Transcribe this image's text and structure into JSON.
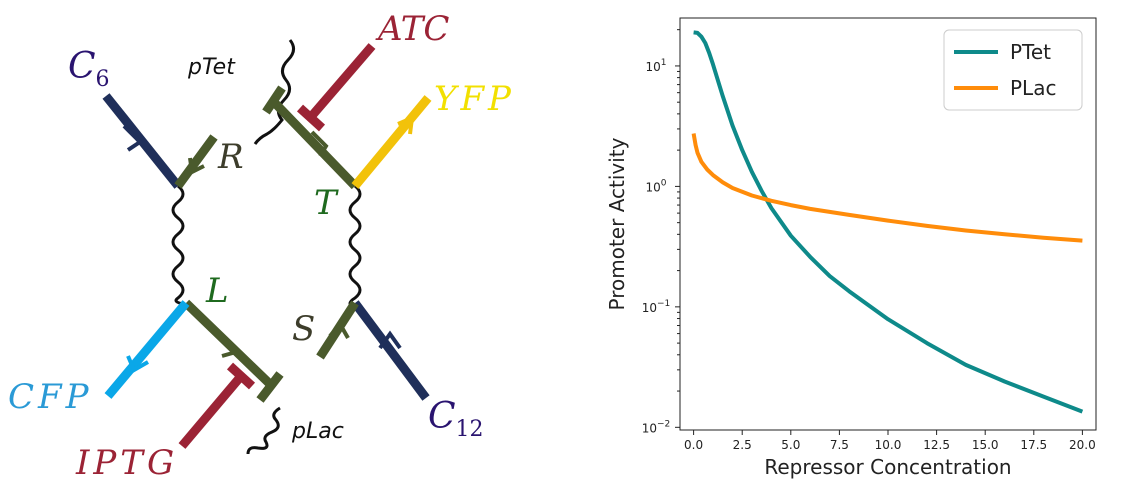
{
  "diagram": {
    "labels": {
      "c6": "C",
      "c6_sub": "6",
      "c12": "C",
      "c12_sub": "12",
      "atc": "ATC",
      "yfp": "YFP",
      "cfp": "CFP",
      "iptg": "IPTG",
      "r": "R",
      "t": "T",
      "l": "L",
      "s": "S",
      "ptet": "pTet",
      "plac": "pLac"
    },
    "colors": {
      "navy": "#1f2f5a",
      "olive": "#4a5a2c",
      "maroon": "#9b2335",
      "yellow": "#f2c20a",
      "sky": "#0aa7e8",
      "purple_text": "#2a1470",
      "red_text": "#9b2335",
      "yellow_text": "#f2e000",
      "sky_text": "#2a9ad6",
      "green_text": "#1f6a1f",
      "olive_text": "#3d3d2b"
    }
  },
  "chart_data": {
    "type": "line",
    "xlabel": "Repressor Concentration",
    "ylabel": "Promoter Activity",
    "xlim": [
      -0.7,
      20.7
    ],
    "ylim": [
      0.0095,
      25
    ],
    "yscale": "log",
    "xticks": [
      "0.0",
      "2.5",
      "5.0",
      "7.5",
      "10.0",
      "12.5",
      "15.0",
      "17.5",
      "20.0"
    ],
    "yticks": [
      {
        "base": "10",
        "exp": "−2",
        "value": 0.01
      },
      {
        "base": "10",
        "exp": "−1",
        "value": 0.1
      },
      {
        "base": "10",
        "exp": "0",
        "value": 1
      },
      {
        "base": "10",
        "exp": "1",
        "value": 10
      }
    ],
    "legend_position": "top-right",
    "grid": false,
    "series": [
      {
        "name": "PTet",
        "color": "#0e8a8a",
        "x": [
          0,
          0.2,
          0.4,
          0.6,
          0.8,
          1.0,
          1.5,
          2.0,
          2.5,
          3.0,
          3.5,
          4.0,
          5.0,
          6.0,
          7.0,
          8.0,
          10.0,
          12.0,
          14.0,
          16.0,
          18.0,
          20.0
        ],
        "y": [
          19.0,
          18.8,
          17.5,
          15.5,
          12.8,
          10.3,
          5.6,
          3.2,
          2.0,
          1.32,
          0.92,
          0.66,
          0.39,
          0.26,
          0.18,
          0.135,
          0.079,
          0.05,
          0.033,
          0.024,
          0.018,
          0.0135
        ]
      },
      {
        "name": "PLac",
        "color": "#ff8c0a",
        "x": [
          0,
          0.1,
          0.2,
          0.4,
          0.7,
          1.0,
          1.5,
          2.0,
          3.0,
          4.0,
          5.0,
          6.0,
          8.0,
          10.0,
          12.0,
          14.0,
          16.0,
          18.0,
          20.0
        ],
        "y": [
          2.75,
          2.2,
          1.9,
          1.6,
          1.38,
          1.24,
          1.08,
          0.97,
          0.84,
          0.76,
          0.7,
          0.65,
          0.58,
          0.52,
          0.47,
          0.43,
          0.4,
          0.375,
          0.355
        ]
      }
    ]
  }
}
